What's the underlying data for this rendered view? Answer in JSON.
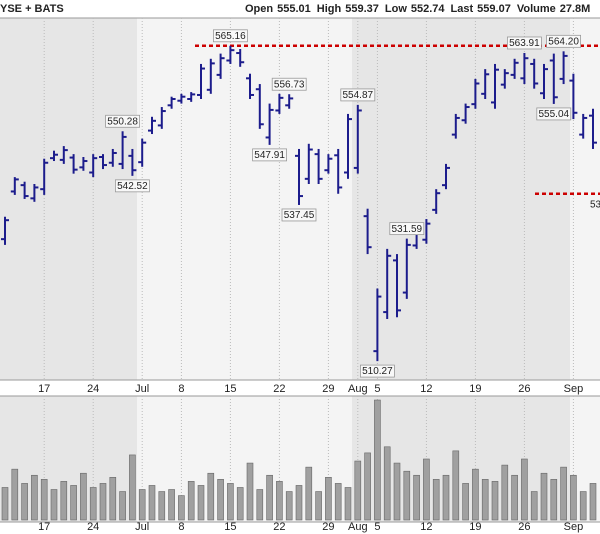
{
  "header": {
    "exchange": "YSE + BATS",
    "quote": [
      {
        "label": "Open",
        "value": 555.01
      },
      {
        "label": "High",
        "value": 559.37
      },
      {
        "label": "Low",
        "value": 552.74
      },
      {
        "label": "Last",
        "value": 559.07
      },
      {
        "label": "Volume",
        "value": "27.8M"
      }
    ]
  },
  "chart_data": [
    {
      "type": "ohlc",
      "color": "#1c1c8c",
      "categories": [
        null,
        null,
        null,
        null,
        "17",
        null,
        null,
        null,
        null,
        "24",
        null,
        null,
        null,
        null,
        "Jul",
        null,
        null,
        null,
        "8",
        null,
        null,
        null,
        null,
        "15",
        null,
        null,
        null,
        null,
        "22",
        null,
        null,
        null,
        null,
        "29",
        null,
        null,
        "Aug",
        null,
        "5",
        null,
        null,
        null,
        null,
        "12",
        null,
        null,
        null,
        null,
        "19",
        null,
        null,
        null,
        null,
        "26",
        null,
        null,
        null,
        null,
        "Sep",
        null,
        null
      ],
      "open": [
        531.5,
        539.8,
        540.9,
        538.6,
        540.2,
        545.6,
        545.3,
        545.7,
        544.0,
        543.1,
        545.8,
        544.8,
        544.6,
        546.0,
        544.9,
        550.4,
        551.3,
        554.8,
        555.6,
        555.9,
        556.6,
        557.5,
        560.1,
        562.6,
        563.9,
        559.5,
        557.6,
        549.2,
        553.9,
        554.8,
        546.0,
        542.0,
        546.3,
        543.5,
        546.1,
        543.1,
        543.9,
        535.5,
        512.0,
        518.8,
        527.8,
        522.2,
        530.4,
        531.4,
        536.6,
        540.9,
        549.7,
        552.2,
        555.0,
        556.8,
        555.3,
        558.4,
        560.1,
        559.5,
        562.0,
        556.9,
        562.6,
        559.4,
        559.1,
        549.7,
        553.0
      ],
      "high": [
        535.4,
        542.3,
        541.5,
        541.1,
        545.5,
        546.9,
        547.7,
        546.3,
        545.8,
        546.3,
        546.3,
        547.2,
        550.28,
        547.2,
        549.0,
        552.8,
        554.5,
        556.3,
        556.8,
        557.1,
        562.0,
        562.9,
        563.8,
        565.16,
        564.6,
        560.3,
        558.5,
        555.1,
        556.8,
        556.73,
        547.2,
        548.1,
        547.2,
        546.3,
        547.2,
        553.3,
        554.87,
        536.8,
        522.9,
        529.8,
        528.9,
        531.59,
        533.3,
        535.0,
        540.2,
        544.6,
        553.3,
        555.1,
        559.4,
        561.1,
        562.0,
        561.1,
        562.9,
        563.91,
        562.9,
        562.0,
        563.8,
        564.2,
        560.3,
        553.3,
        554.2
      ],
      "low": [
        530.5,
        539.2,
        538.5,
        538.0,
        539.2,
        545.1,
        544.6,
        542.9,
        543.4,
        542.3,
        543.7,
        544.1,
        543.7,
        542.52,
        544.1,
        549.8,
        550.7,
        554.2,
        555.1,
        555.4,
        555.9,
        556.8,
        559.4,
        562.0,
        561.5,
        555.9,
        550.7,
        547.91,
        553.3,
        554.2,
        537.45,
        541.1,
        541.1,
        542.9,
        539.4,
        542.0,
        542.9,
        528.9,
        510.27,
        517.6,
        517.9,
        521.1,
        529.8,
        530.7,
        535.9,
        540.2,
        549.0,
        551.6,
        554.2,
        555.9,
        554.2,
        557.7,
        559.4,
        558.5,
        557.7,
        555.9,
        555.04,
        558.5,
        552.4,
        549.0,
        547.2
      ],
      "close": [
        534.8,
        541.9,
        539.0,
        540.5,
        544.8,
        546.2,
        547.0,
        543.6,
        545.1,
        545.6,
        544.4,
        546.5,
        549.3,
        543.5,
        548.3,
        552.1,
        553.8,
        555.9,
        556.3,
        556.7,
        561.2,
        562.1,
        563.0,
        564.4,
        562.3,
        556.6,
        551.5,
        554.0,
        556.1,
        556.0,
        539.0,
        547.1,
        542.0,
        545.5,
        540.5,
        552.4,
        553.9,
        530.1,
        521.5,
        528.6,
        519.1,
        530.5,
        532.6,
        534.2,
        539.5,
        543.9,
        552.6,
        554.5,
        558.6,
        560.2,
        561.0,
        560.4,
        562.2,
        563.0,
        558.6,
        561.1,
        556.2,
        563.4,
        553.5,
        552.6,
        548.3
      ],
      "high_labels": [
        null,
        null,
        null,
        null,
        null,
        null,
        null,
        null,
        null,
        null,
        null,
        null,
        "550.28",
        null,
        null,
        null,
        null,
        null,
        null,
        null,
        null,
        null,
        null,
        "565.16",
        null,
        null,
        null,
        null,
        null,
        "556.73",
        null,
        null,
        null,
        null,
        null,
        null,
        "554.87",
        null,
        null,
        null,
        null,
        "531.59",
        null,
        null,
        null,
        null,
        null,
        null,
        null,
        null,
        null,
        null,
        null,
        "563.91",
        null,
        null,
        null,
        "564.20",
        null,
        null,
        null
      ],
      "low_labels": [
        null,
        null,
        null,
        null,
        null,
        null,
        null,
        null,
        null,
        null,
        null,
        null,
        null,
        "542.52",
        null,
        null,
        null,
        null,
        null,
        null,
        null,
        null,
        null,
        null,
        null,
        null,
        null,
        "547.91",
        null,
        null,
        "537.45",
        null,
        null,
        null,
        null,
        null,
        null,
        null,
        "510.27",
        null,
        null,
        null,
        null,
        null,
        null,
        null,
        null,
        null,
        null,
        null,
        null,
        null,
        null,
        null,
        null,
        null,
        "555.04",
        null,
        null,
        null,
        null
      ],
      "levels": [
        {
          "value": 565.16,
          "color": "#cc0000"
        },
        {
          "value": 539.4,
          "color": "#cc0000",
          "label": "53"
        }
      ],
      "ylim": [
        507.5,
        570
      ],
      "grid": true
    },
    {
      "type": "bar",
      "color": "#a0a0a0",
      "categories": [
        null,
        null,
        null,
        null,
        "17",
        null,
        null,
        null,
        null,
        "24",
        null,
        null,
        null,
        null,
        "Jul",
        null,
        null,
        null,
        "8",
        null,
        null,
        null,
        null,
        "15",
        null,
        null,
        null,
        null,
        "22",
        null,
        null,
        null,
        null,
        "29",
        null,
        null,
        "Aug",
        null,
        "5",
        null,
        null,
        null,
        null,
        "12",
        null,
        null,
        null,
        null,
        "19",
        null,
        null,
        null,
        null,
        "26",
        null,
        null,
        null,
        null,
        "Sep",
        null,
        null
      ],
      "values": [
        16,
        25,
        18,
        22,
        20,
        15,
        19,
        17,
        23,
        16,
        18,
        21,
        14,
        32,
        15,
        17,
        14,
        15,
        12,
        19,
        17,
        23,
        20,
        18,
        16,
        28,
        15,
        22,
        19,
        14,
        17,
        26,
        14,
        21,
        18,
        16,
        29,
        33,
        59,
        36,
        28,
        24,
        22,
        30,
        20,
        22,
        34,
        18,
        25,
        20,
        19,
        27,
        22,
        30,
        14,
        23,
        20,
        26,
        22,
        14,
        18
      ],
      "ylim": [
        0,
        60
      ],
      "grid": true
    }
  ]
}
